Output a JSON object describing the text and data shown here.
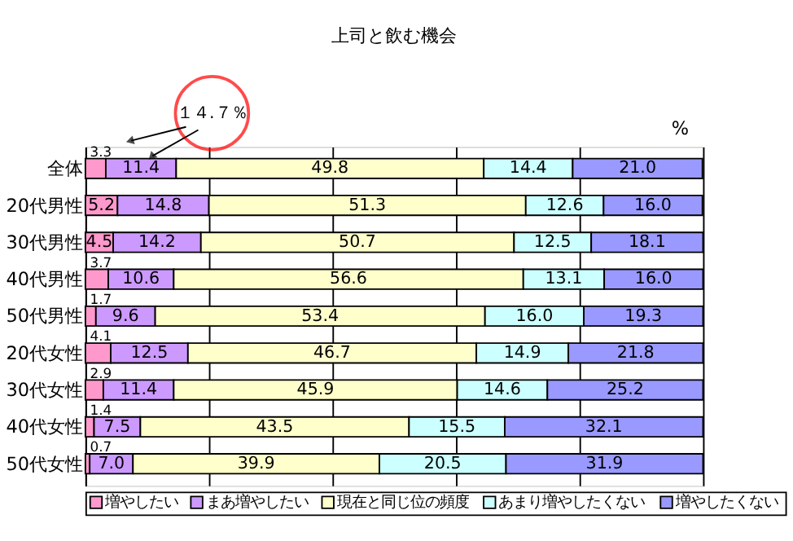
{
  "chart_data": {
    "type": "bar",
    "orientation": "horizontal",
    "stacked": true,
    "title": "上司と飲む機会",
    "categories": [
      "全体",
      "20代男性",
      "30代男性",
      "40代男性",
      "50代男性",
      "20代女性",
      "30代女性",
      "40代女性",
      "50代女性"
    ],
    "series": [
      {
        "name": "増やしたい",
        "color": "#ff99cc",
        "values": [
          3.3,
          5.2,
          4.5,
          3.7,
          1.7,
          4.1,
          2.9,
          1.4,
          0.7
        ],
        "value_labels": [
          "3.3",
          "5.2",
          "4.5",
          "3.7",
          "1.7",
          "4.1",
          "2.9",
          "1.4",
          "0.7"
        ]
      },
      {
        "name": "まあ増やしたい",
        "color": "#cc99ff",
        "values": [
          11.4,
          14.8,
          14.2,
          10.6,
          9.6,
          12.5,
          11.4,
          7.5,
          7.0
        ],
        "value_labels": [
          "11.4",
          "14.8",
          "14.2",
          "10.6",
          "9.6",
          "12.5",
          "11.4",
          "7.5",
          "7.0"
        ]
      },
      {
        "name": "現在と同じ位の頻度",
        "color": "#ffffcc",
        "values": [
          49.8,
          51.3,
          50.7,
          56.6,
          53.4,
          46.7,
          45.9,
          43.5,
          39.9
        ],
        "value_labels": [
          "49.8",
          "51.3",
          "50.7",
          "56.6",
          "53.4",
          "46.7",
          "45.9",
          "43.5",
          "39.9"
        ]
      },
      {
        "name": "あまり増やしたくない",
        "color": "#ccffff",
        "values": [
          14.4,
          12.6,
          12.5,
          13.1,
          16.0,
          14.9,
          14.6,
          15.5,
          20.5
        ],
        "value_labels": [
          "14.4",
          "12.6",
          "12.5",
          "13.1",
          "16.0",
          "14.9",
          "14.6",
          "15.5",
          "20.5"
        ]
      },
      {
        "name": "増やしたくない",
        "color": "#9999ff",
        "values": [
          21.0,
          16.0,
          18.1,
          16.0,
          19.3,
          21.8,
          25.2,
          32.1,
          31.9
        ],
        "value_labels": [
          "21.0",
          "16.0",
          "18.1",
          "16.0",
          "19.3",
          "21.8",
          "25.2",
          "32.1",
          "31.9"
        ]
      }
    ],
    "xlim": [
      0,
      100
    ],
    "xticks": [
      {
        "value": 0,
        "label": null
      },
      {
        "value": 20,
        "label": null
      },
      {
        "value": 40,
        "label": null
      },
      {
        "value": 60,
        "label": null
      },
      {
        "value": 80,
        "label": null
      },
      {
        "value": 100,
        "label": null
      }
    ],
    "tick_labels": "y",
    "grid": "x",
    "legend": "bottom",
    "annotations": [
      "１４.７％",
      "%"
    ]
  }
}
